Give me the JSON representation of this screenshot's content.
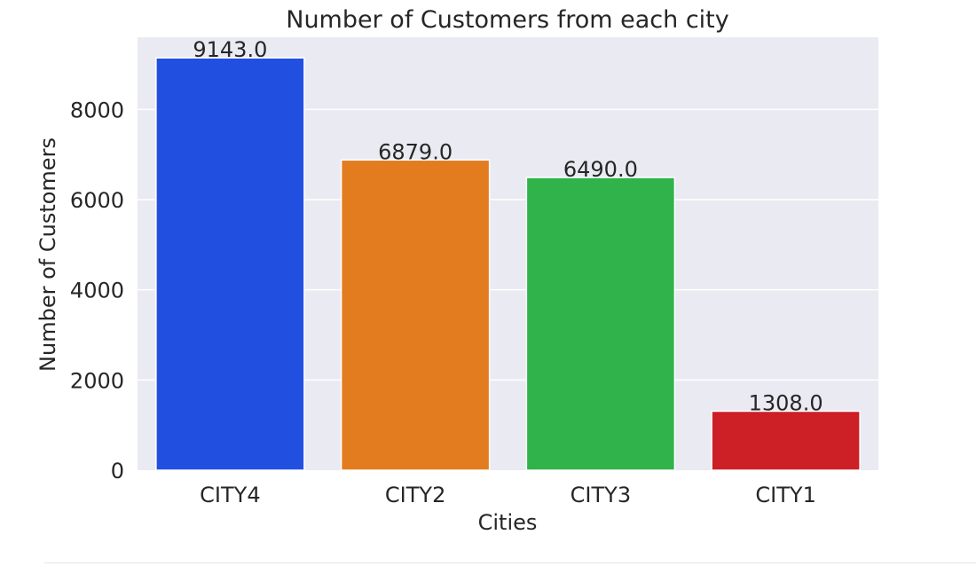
{
  "chart_data": {
    "type": "bar",
    "title": "Number of Customers from each city",
    "xlabel": "Cities",
    "ylabel": "Number of Customers",
    "categories": [
      "CITY4",
      "CITY2",
      "CITY3",
      "CITY1"
    ],
    "values": [
      9143,
      6879,
      6490,
      1308
    ],
    "data_labels": [
      "9143.0",
      "6879.0",
      "6490.0",
      "1308.0"
    ],
    "colors": [
      "#2150e0",
      "#e27c1f",
      "#2fb34a",
      "#cc1f26"
    ],
    "yticks": [
      0,
      2000,
      4000,
      6000,
      8000
    ],
    "ylim": [
      0,
      9600
    ],
    "grid": true,
    "background": "#eaeaf2",
    "legend": "none"
  }
}
